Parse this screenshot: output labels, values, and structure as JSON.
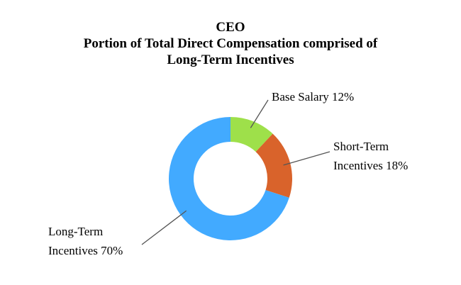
{
  "chart_data": {
    "type": "donut",
    "title": "CEO",
    "subtitle": [
      "Portion of Total Direct Compensation comprised of",
      "Long-Term Incentives"
    ],
    "categories": [
      "Base Salary",
      "Short-Term Incentives",
      "Long-Term Incentives"
    ],
    "values": [
      12,
      18,
      70
    ],
    "value_labels": [
      "12%",
      "18%",
      "70%"
    ],
    "colors": [
      "#9ee04a",
      "#d9632b",
      "#42aaff"
    ]
  }
}
